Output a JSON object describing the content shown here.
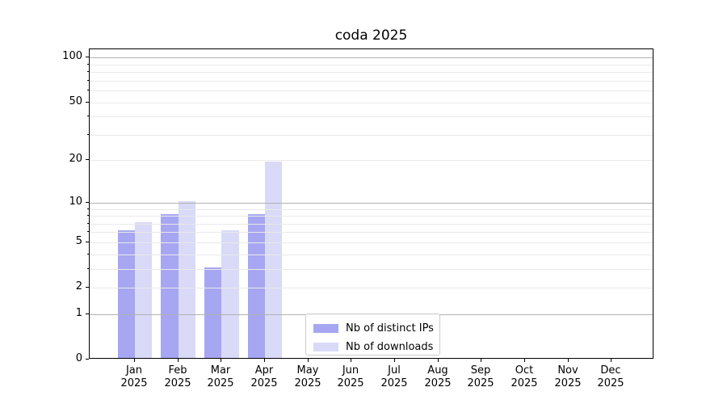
{
  "chart_data": {
    "type": "bar",
    "title": "coda 2025",
    "y_scale": "log1p",
    "grid": true,
    "ylim": [
      0,
      116
    ],
    "months": [
      "Jan",
      "Feb",
      "Mar",
      "Apr",
      "May",
      "Jun",
      "Jul",
      "Aug",
      "Sep",
      "Oct",
      "Nov",
      "Dec"
    ],
    "year_label": "2025",
    "series": [
      {
        "name": "Nb of distinct IPs",
        "color": "#a6a6f2",
        "values": [
          6,
          8,
          3,
          8,
          0,
          0,
          0,
          0,
          0,
          0,
          0,
          0
        ]
      },
      {
        "name": "Nb of downloads",
        "color": "#d9d9f8",
        "values": [
          7,
          10,
          6,
          19,
          0,
          0,
          0,
          0,
          0,
          0,
          0,
          0
        ]
      }
    ],
    "y_ticks": [
      {
        "label": "100",
        "value": 100
      },
      {
        "label": "50",
        "value": 50
      },
      {
        "label": "20",
        "value": 20
      },
      {
        "label": "10",
        "value": 10
      },
      {
        "label": "5",
        "value": 5
      },
      {
        "label": "2",
        "value": 2
      },
      {
        "label": "1",
        "value": 1
      },
      {
        "label": "0",
        "value": 0
      }
    ],
    "y_major_gridlines": [
      1,
      10,
      100
    ],
    "y_minor_gridlines": [
      2,
      3,
      4,
      5,
      6,
      7,
      8,
      9,
      20,
      30,
      40,
      50,
      60,
      70,
      80,
      90
    ],
    "legend": {
      "position": "lower center"
    }
  }
}
